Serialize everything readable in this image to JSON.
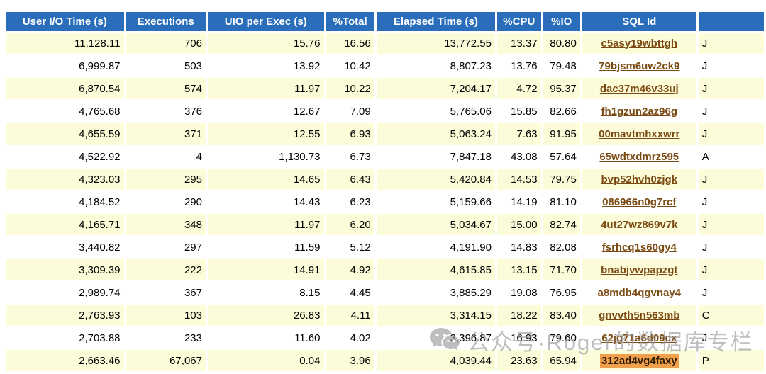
{
  "report_table": {
    "columns": [
      {
        "label": "User I/O Time (s)",
        "align": "right",
        "width": 182
      },
      {
        "label": "Executions",
        "align": "right",
        "width": 122
      },
      {
        "label": "UIO per Exec (s)",
        "align": "right",
        "width": 179
      },
      {
        "label": "%Total",
        "align": "right",
        "width": 73
      },
      {
        "label": "Elapsed Time (s)",
        "align": "right",
        "width": 183
      },
      {
        "label": "%CPU",
        "align": "right",
        "width": 65
      },
      {
        "label": "%IO",
        "align": "right",
        "width": 54
      },
      {
        "label": "SQL Id",
        "align": "center",
        "width": 174
      },
      {
        "label": "",
        "align": "left",
        "width": 120
      }
    ],
    "rows": [
      {
        "user_io_time": "11,128.11",
        "executions": "706",
        "uio_per_exec": "15.76",
        "pct_total": "16.56",
        "elapsed_time": "13,772.55",
        "pct_cpu": "13.37",
        "pct_io": "80.80",
        "sql_id": "c5asy19wbttgh",
        "module_partial": "J",
        "highlight": false
      },
      {
        "user_io_time": "6,999.87",
        "executions": "503",
        "uio_per_exec": "13.92",
        "pct_total": "10.42",
        "elapsed_time": "8,807.23",
        "pct_cpu": "13.76",
        "pct_io": "79.48",
        "sql_id": "79bjsm6uw2ck9",
        "module_partial": "J",
        "highlight": false
      },
      {
        "user_io_time": "6,870.54",
        "executions": "574",
        "uio_per_exec": "11.97",
        "pct_total": "10.22",
        "elapsed_time": "7,204.17",
        "pct_cpu": "4.72",
        "pct_io": "95.37",
        "sql_id": "dac37m46v33uj",
        "module_partial": "J",
        "highlight": false
      },
      {
        "user_io_time": "4,765.68",
        "executions": "376",
        "uio_per_exec": "12.67",
        "pct_total": "7.09",
        "elapsed_time": "5,765.06",
        "pct_cpu": "15.85",
        "pct_io": "82.66",
        "sql_id": "fh1gzun2az96g",
        "module_partial": "J",
        "highlight": false
      },
      {
        "user_io_time": "4,655.59",
        "executions": "371",
        "uio_per_exec": "12.55",
        "pct_total": "6.93",
        "elapsed_time": "5,063.24",
        "pct_cpu": "7.63",
        "pct_io": "91.95",
        "sql_id": "00mavtmhxxwrr",
        "module_partial": "J",
        "highlight": false
      },
      {
        "user_io_time": "4,522.92",
        "executions": "4",
        "uio_per_exec": "1,130.73",
        "pct_total": "6.73",
        "elapsed_time": "7,847.18",
        "pct_cpu": "43.08",
        "pct_io": "57.64",
        "sql_id": "65wdtxdmrz595",
        "module_partial": "A",
        "highlight": false
      },
      {
        "user_io_time": "4,323.03",
        "executions": "295",
        "uio_per_exec": "14.65",
        "pct_total": "6.43",
        "elapsed_time": "5,420.84",
        "pct_cpu": "14.53",
        "pct_io": "79.75",
        "sql_id": "bvp52hvh0zjgk",
        "module_partial": "J",
        "highlight": false
      },
      {
        "user_io_time": "4,184.52",
        "executions": "290",
        "uio_per_exec": "14.43",
        "pct_total": "6.23",
        "elapsed_time": "5,159.66",
        "pct_cpu": "14.19",
        "pct_io": "81.10",
        "sql_id": "086966n0g7rcf",
        "module_partial": "J",
        "highlight": false
      },
      {
        "user_io_time": "4,165.71",
        "executions": "348",
        "uio_per_exec": "11.97",
        "pct_total": "6.20",
        "elapsed_time": "5,034.67",
        "pct_cpu": "15.00",
        "pct_io": "82.74",
        "sql_id": "4ut27wz869v7k",
        "module_partial": "J",
        "highlight": false
      },
      {
        "user_io_time": "3,440.82",
        "executions": "297",
        "uio_per_exec": "11.59",
        "pct_total": "5.12",
        "elapsed_time": "4,191.90",
        "pct_cpu": "14.83",
        "pct_io": "82.08",
        "sql_id": "fsrhcq1s60gy4",
        "module_partial": "J",
        "highlight": false
      },
      {
        "user_io_time": "3,309.39",
        "executions": "222",
        "uio_per_exec": "14.91",
        "pct_total": "4.92",
        "elapsed_time": "4,615.85",
        "pct_cpu": "13.15",
        "pct_io": "71.70",
        "sql_id": "bnabjvwpapzgt",
        "module_partial": "J",
        "highlight": false
      },
      {
        "user_io_time": "2,989.74",
        "executions": "367",
        "uio_per_exec": "8.15",
        "pct_total": "4.45",
        "elapsed_time": "3,885.29",
        "pct_cpu": "19.08",
        "pct_io": "76.95",
        "sql_id": "a8mdb4qgvnay4",
        "module_partial": "J",
        "highlight": false
      },
      {
        "user_io_time": "2,763.93",
        "executions": "103",
        "uio_per_exec": "26.83",
        "pct_total": "4.11",
        "elapsed_time": "3,314.15",
        "pct_cpu": "18.22",
        "pct_io": "83.40",
        "sql_id": "gnvvth5n563mb",
        "module_partial": "C",
        "highlight": false
      },
      {
        "user_io_time": "2,703.88",
        "executions": "233",
        "uio_per_exec": "11.60",
        "pct_total": "4.02",
        "elapsed_time": "3,396.87",
        "pct_cpu": "16.93",
        "pct_io": "79.60",
        "sql_id": "62jg71a6d09cx",
        "module_partial": "J",
        "highlight": false
      },
      {
        "user_io_time": "2,663.46",
        "executions": "67,067",
        "uio_per_exec": "0.04",
        "pct_total": "3.96",
        "elapsed_time": "4,039.44",
        "pct_cpu": "23.63",
        "pct_io": "65.94",
        "sql_id": "312ad4vg4faxy",
        "module_partial": "P",
        "highlight": true
      }
    ]
  },
  "watermark": {
    "icon": "wechat-icon",
    "text": "公众号·Roger的数据库专栏"
  },
  "colors": {
    "header_bg": "#2a6ebb",
    "row_alt_bg": "#fcfcd9",
    "link": "#7b4a12",
    "highlight_bg": "#f0a04c"
  }
}
